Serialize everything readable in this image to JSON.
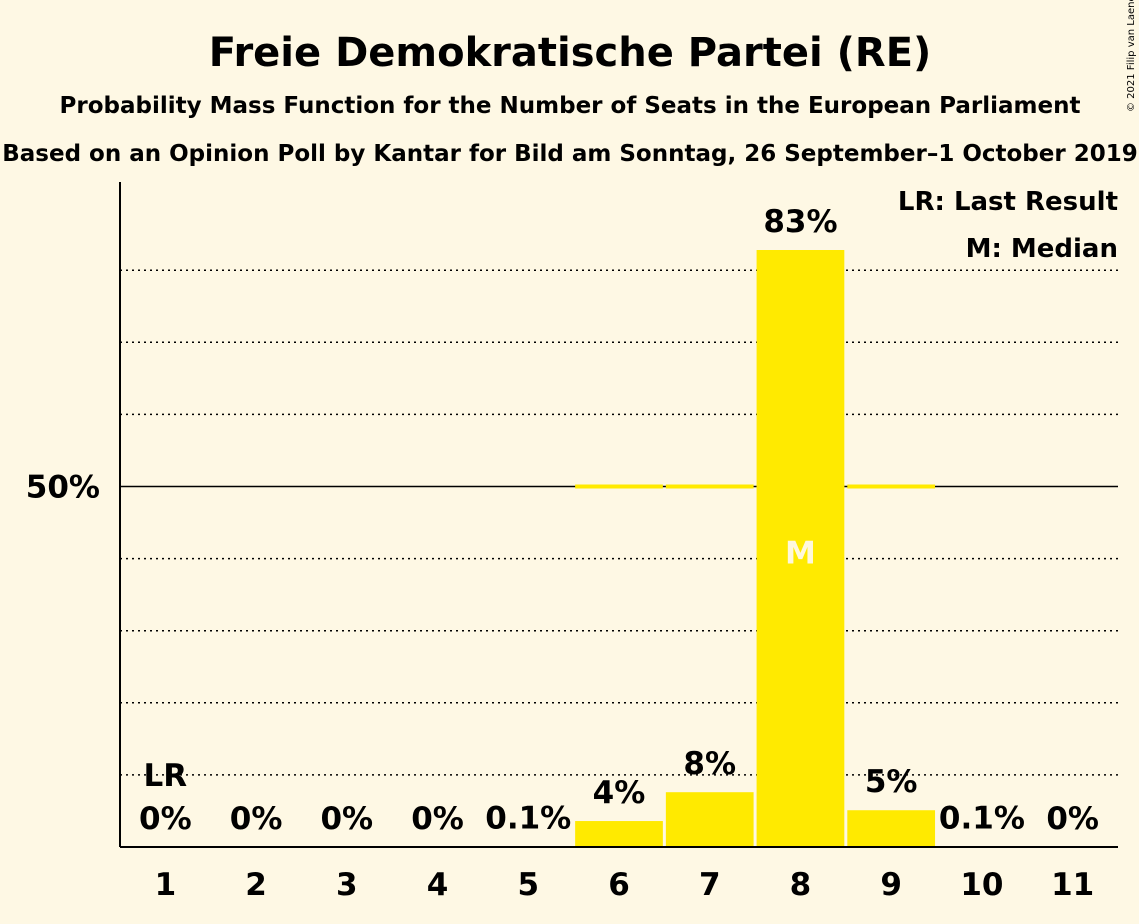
{
  "chart_data": {
    "type": "bar",
    "title": "Freie Demokratische Partei (RE)",
    "subtitle": "Probability Mass Function for the Number of Seats in the European Parliament",
    "subtitle2": "Based on an Opinion Poll by Kantar for Bild am Sonntag, 26 September–1 October 2019",
    "categories": [
      "1",
      "2",
      "3",
      "4",
      "5",
      "6",
      "7",
      "8",
      "9",
      "10",
      "11"
    ],
    "values": [
      0,
      0,
      0,
      0,
      0.1,
      3.6,
      7.6,
      82.8,
      5.1,
      0.1,
      0
    ],
    "value_labels": [
      "0%",
      "0%",
      "0%",
      "0%",
      "0.1%",
      "4%",
      "8%",
      "83%",
      "5%",
      "0.1%",
      "0%"
    ],
    "ylim": [
      0,
      90
    ],
    "y_ticks": [
      {
        "value": 50,
        "label": "50%"
      }
    ],
    "gridlines": [
      10,
      20,
      30,
      40,
      60,
      70,
      80
    ],
    "bar_color": "#ffea00",
    "last_result": {
      "category": "1",
      "label": "LR"
    },
    "median": {
      "category": "8",
      "label": "M"
    },
    "legend": [
      "LR: Last Result",
      "M: Median"
    ],
    "legend_position": "top-right",
    "copyright": "© 2021 Filip van Laenen"
  }
}
